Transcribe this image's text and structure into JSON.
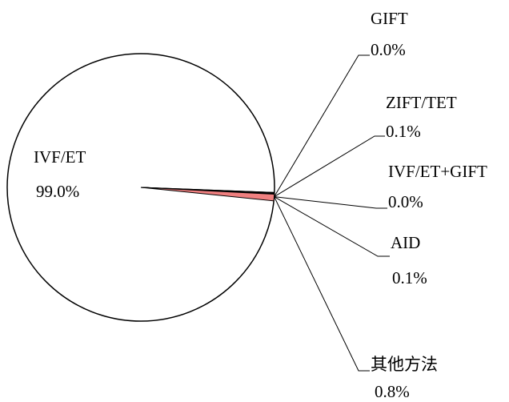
{
  "chart_data": {
    "type": "pie",
    "categories": [
      "IVF/ET",
      "GIFT",
      "ZIFT/TET",
      "IVF/ET+GIFT",
      "AID",
      "其他方法"
    ],
    "values": [
      99.0,
      0.0,
      0.1,
      0.0,
      0.1,
      0.8
    ],
    "value_labels": [
      "99.0%",
      "0.0%",
      "0.1%",
      "0.0%",
      "0.1%",
      "0.8%"
    ],
    "colors": [
      "#ffffff",
      "#ffffff",
      "#000000",
      "#ffffff",
      "#000000",
      "#f08080"
    ]
  }
}
